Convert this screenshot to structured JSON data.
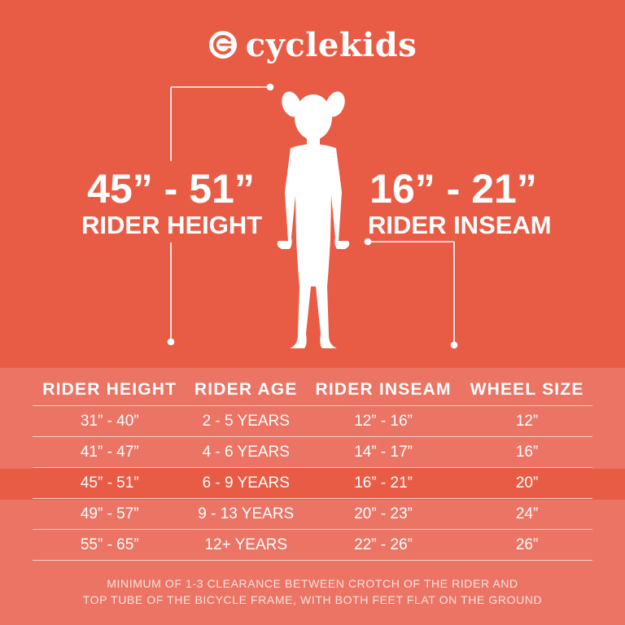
{
  "brand": {
    "name": "cyclekids",
    "logo_icon": "cyclekids-logo-icon"
  },
  "colors": {
    "primary_bg": "#e85c45",
    "table_bg": "#ec7464",
    "text": "#ffffff"
  },
  "hero": {
    "height_value": "45” - 51”",
    "height_label": "RIDER HEIGHT",
    "inseam_value": "16” - 21”",
    "inseam_label": "RIDER INSEAM",
    "figure_icon": "child-silhouette-icon"
  },
  "table": {
    "headers": [
      "RIDER HEIGHT",
      "RIDER AGE",
      "RIDER INSEAM",
      "WHEEL SIZE"
    ],
    "rows": [
      [
        "31” - 40”",
        "2 - 5 YEARS",
        "12” - 16”",
        "12”"
      ],
      [
        "41” - 47”",
        "4 - 6 YEARS",
        "14” - 17”",
        "16”"
      ],
      [
        "45” - 51”",
        "6 - 9 YEARS",
        "16” - 21”",
        "20”"
      ],
      [
        "49” - 57”",
        "9 - 13 YEARS",
        "20” - 23”",
        "24”"
      ],
      [
        "55” - 65”",
        "12+ YEARS",
        "22” - 26”",
        "26”"
      ]
    ],
    "highlighted_row": 2
  },
  "note": {
    "line1": "MINIMUM OF 1-3 CLEARANCE BETWEEN CROTCH OF THE RIDER AND",
    "line2": "TOP TUBE OF THE BICYCLE FRAME, WITH BOTH FEET FLAT ON THE GROUND"
  }
}
